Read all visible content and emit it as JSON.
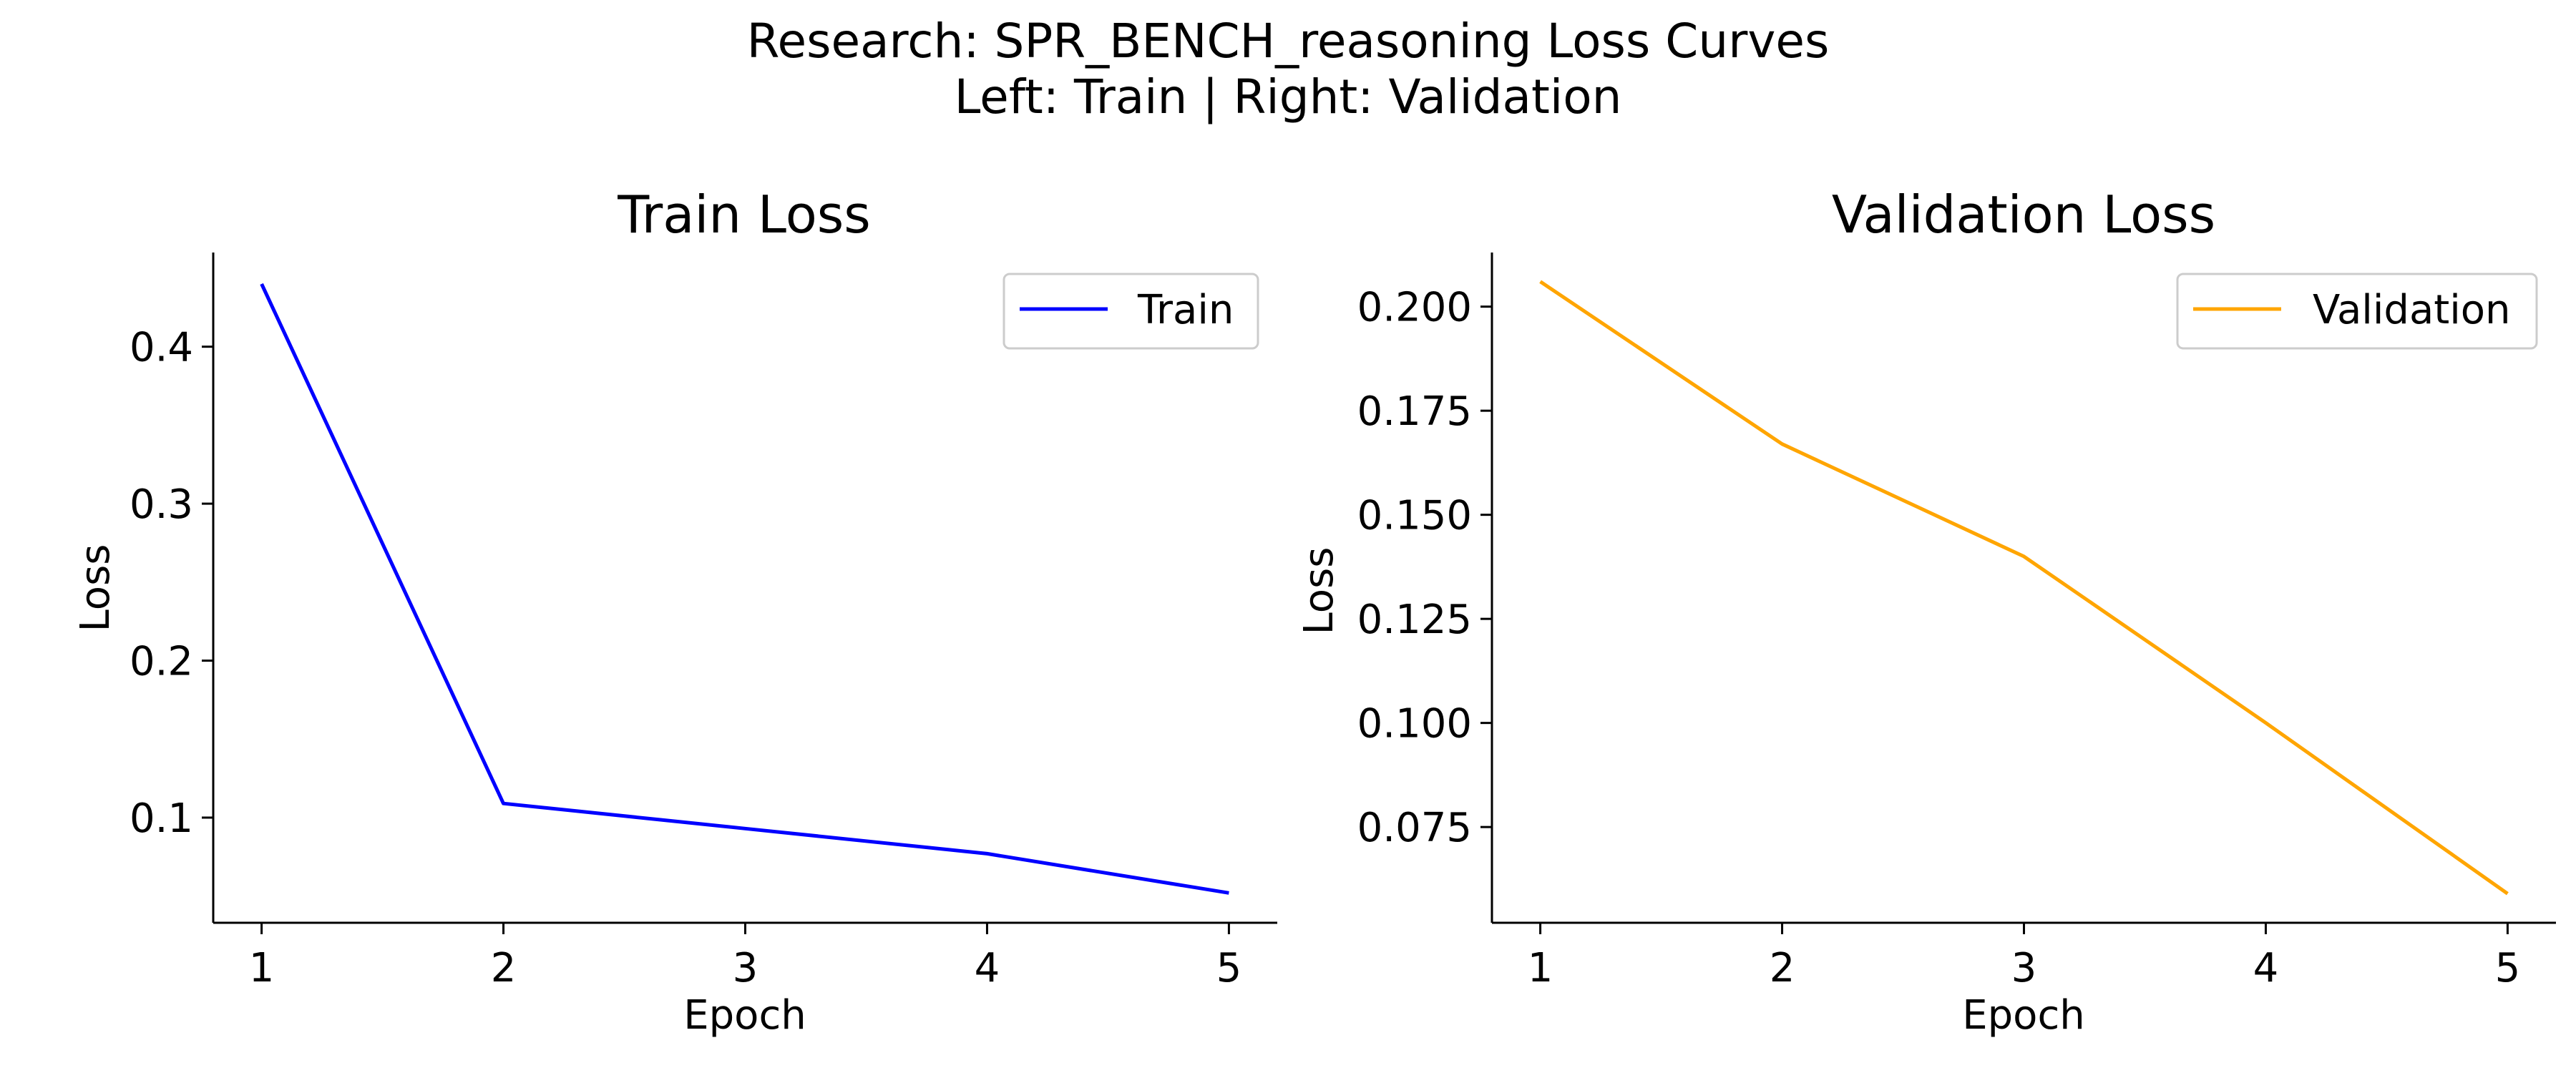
{
  "figure": {
    "title_line1": "Research: SPR_BENCH_reasoning Loss Curves",
    "title_line2": "Left: Train  |  Right: Validation"
  },
  "chart_data": [
    {
      "type": "line",
      "title": "Train Loss",
      "xlabel": "Epoch",
      "ylabel": "Loss",
      "x": [
        1,
        2,
        3,
        4,
        5
      ],
      "xticks": [
        "1",
        "2",
        "3",
        "4",
        "5"
      ],
      "yticks": [
        "0.1",
        "0.2",
        "0.3",
        "0.4"
      ],
      "ytick_values": [
        0.1,
        0.2,
        0.3,
        0.4
      ],
      "xlim": [
        0.8,
        5.2
      ],
      "ylim": [
        0.033,
        0.46
      ],
      "series": [
        {
          "name": "Train",
          "color": "#0000ff",
          "values": [
            0.44,
            0.109,
            0.093,
            0.077,
            0.052
          ]
        }
      ],
      "legend": "top-right",
      "grid": false
    },
    {
      "type": "line",
      "title": "Validation Loss",
      "xlabel": "Epoch",
      "ylabel": "Loss",
      "x": [
        1,
        2,
        3,
        4,
        5
      ],
      "xticks": [
        "1",
        "2",
        "3",
        "4",
        "5"
      ],
      "yticks": [
        "0.075",
        "0.100",
        "0.125",
        "0.150",
        "0.175",
        "0.200"
      ],
      "ytick_values": [
        0.075,
        0.1,
        0.125,
        0.15,
        0.175,
        0.2
      ],
      "xlim": [
        0.8,
        5.2
      ],
      "ylim": [
        0.052,
        0.213
      ],
      "series": [
        {
          "name": "Validation",
          "color": "#ffa500",
          "values": [
            0.206,
            0.167,
            0.14,
            0.1,
            0.059
          ]
        }
      ],
      "legend": "top-right",
      "grid": false
    }
  ]
}
